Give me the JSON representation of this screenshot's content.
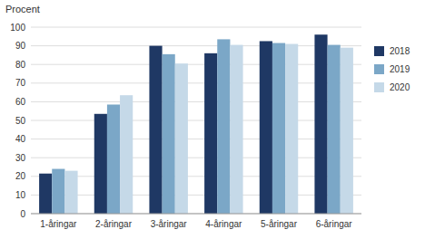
{
  "chart_data": {
    "type": "bar",
    "ylabel": "Procent",
    "categories": [
      "1-åringar",
      "2-åringar",
      "3-åringar",
      "4-åringar",
      "5-åringar",
      "6-åringar"
    ],
    "series": [
      {
        "name": "2018",
        "color": "#1F3864",
        "values": [
          21.5,
          53.5,
          90.0,
          86.0,
          92.5,
          96.0
        ]
      },
      {
        "name": "2019",
        "color": "#7BA7C7",
        "values": [
          24.0,
          58.5,
          85.5,
          93.5,
          91.5,
          90.5
        ]
      },
      {
        "name": "2020",
        "color": "#C5D9E8",
        "values": [
          23.0,
          63.5,
          80.5,
          90.5,
          91.0,
          89.0
        ]
      }
    ],
    "ylim": [
      0,
      100
    ],
    "yticks": [
      0,
      10,
      20,
      30,
      40,
      50,
      60,
      70,
      80,
      90,
      100
    ],
    "grid": true,
    "legend": "right"
  }
}
